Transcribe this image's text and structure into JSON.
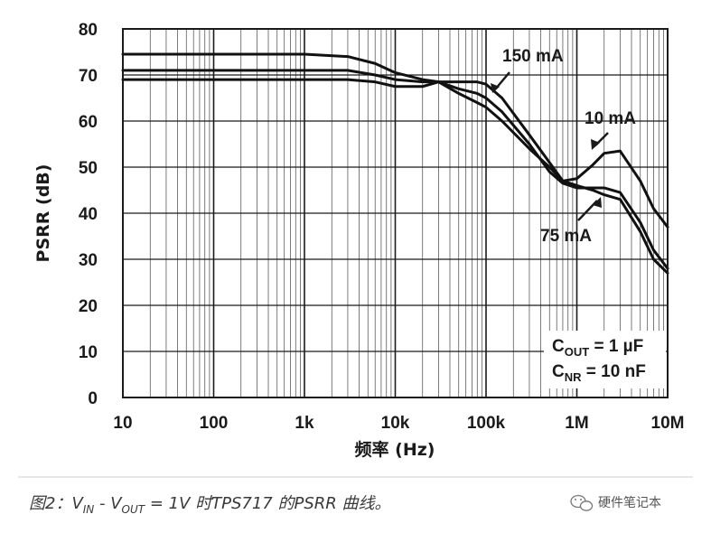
{
  "chart_data": {
    "type": "line",
    "x_scale": "log",
    "y_scale": "linear",
    "xlim": [
      10,
      10000000
    ],
    "ylim": [
      0,
      80
    ],
    "grid": true,
    "xlabel": "频率 (Hz)",
    "ylabel": "PSRR (dB)",
    "x_tick_values": [
      10,
      100,
      1000,
      10000,
      100000,
      1000000,
      10000000
    ],
    "x_tick_labels": [
      "10",
      "100",
      "1k",
      "10k",
      "100k",
      "1M",
      "10M"
    ],
    "y_tick_values": [
      0,
      10,
      20,
      30,
      40,
      50,
      60,
      70,
      80
    ],
    "y_tick_labels": [
      "0",
      "10",
      "20",
      "30",
      "40",
      "50",
      "60",
      "70",
      "80"
    ],
    "series": [
      {
        "name": "150 mA",
        "x": [
          10,
          1000,
          3000,
          6000,
          10000,
          20000,
          30000,
          50000,
          80000,
          100000,
          150000,
          300000,
          500000,
          700000,
          1000000,
          1500000,
          2000000,
          3000000,
          5000000,
          7000000,
          10000000
        ],
        "y": [
          69,
          69,
          69,
          68.5,
          67.5,
          67.5,
          68.5,
          68.5,
          68.5,
          68,
          65,
          57,
          51,
          47,
          46,
          45,
          44,
          43,
          36,
          30,
          27
        ]
      },
      {
        "name": "75 mA",
        "x": [
          10,
          1000,
          3000,
          6000,
          10000,
          20000,
          30000,
          50000,
          80000,
          100000,
          150000,
          300000,
          500000,
          700000,
          1000000,
          1500000,
          2000000,
          3000000,
          5000000,
          7000000,
          10000000
        ],
        "y": [
          71,
          71,
          71,
          70,
          69,
          68.5,
          68.5,
          67,
          66,
          65,
          62,
          55,
          49,
          46.5,
          45.5,
          45.5,
          45.5,
          44.5,
          38,
          32,
          28
        ]
      },
      {
        "name": "10 mA",
        "x": [
          10,
          1000,
          3000,
          6000,
          10000,
          20000,
          30000,
          50000,
          80000,
          100000,
          150000,
          300000,
          500000,
          700000,
          1000000,
          1500000,
          2000000,
          3000000,
          5000000,
          7000000,
          10000000
        ],
        "y": [
          74.5,
          74.5,
          74,
          72.5,
          70.5,
          69,
          68.5,
          66,
          64,
          63,
          60,
          54,
          50,
          47,
          47.5,
          50.5,
          53,
          53.5,
          47,
          41,
          37
        ]
      }
    ],
    "annotations": {
      "label_150": "150 mA",
      "label_10": "10 mA",
      "label_75": "75 mA",
      "cout_prefix": "C",
      "cout_sub": "OUT",
      "cout_value": " = 1 µF",
      "cnr_prefix": "C",
      "cnr_sub": "NR",
      "cnr_value": " = 10 nF"
    }
  },
  "caption": {
    "part1": "图2：V",
    "sub1": "IN",
    "part2": " - V",
    "sub2": "OUT",
    "part3": " = 1V 时TPS717 的PSRR 曲线。"
  },
  "watermark": {
    "text": "硬件笔记本",
    "icon": "wechat-icon"
  }
}
